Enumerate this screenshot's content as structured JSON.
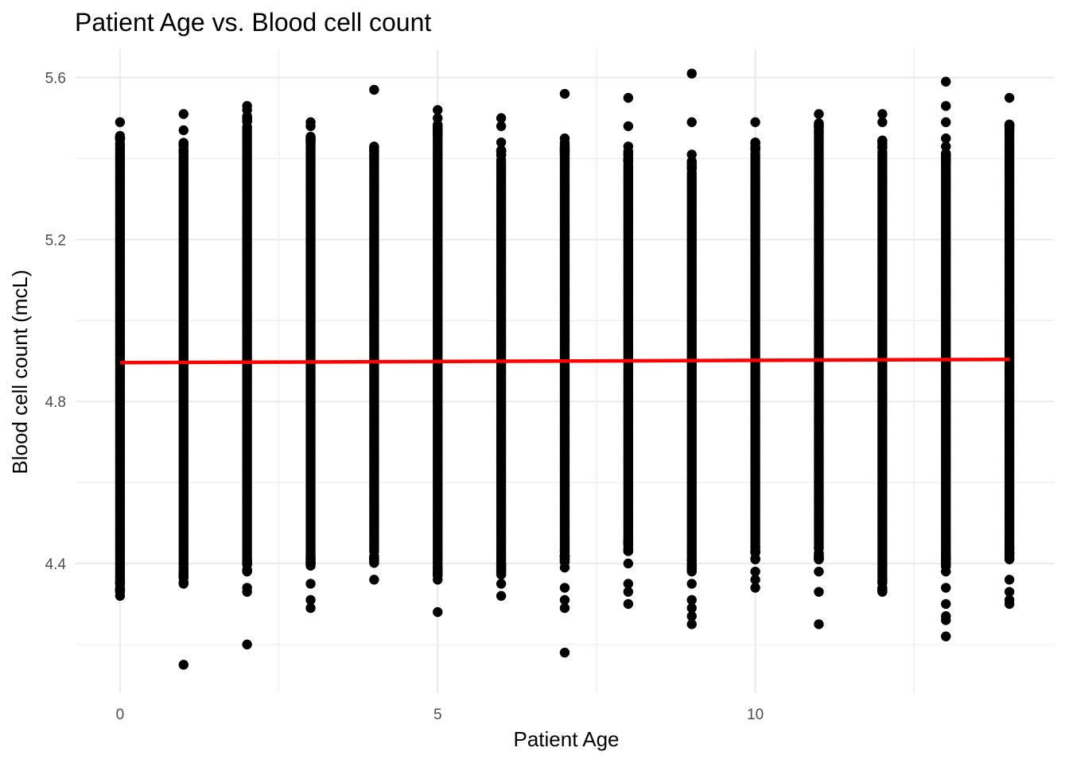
{
  "chart_data": {
    "type": "scatter",
    "title": "Patient Age vs. Blood cell count",
    "xlabel": "Patient Age",
    "ylabel": "Blood cell count (mcL)",
    "xlim": [
      -0.7,
      14.7
    ],
    "ylim": [
      4.08,
      5.67
    ],
    "x_ticks": [
      0,
      5,
      10
    ],
    "x_tick_labels": [
      "0",
      "5",
      "10"
    ],
    "x_minor_ticks": [
      2.5,
      7.5,
      12.5
    ],
    "y_ticks": [
      4.4,
      4.8,
      5.2,
      5.6
    ],
    "y_tick_labels": [
      "4.4",
      "4.8",
      "5.2",
      "5.6"
    ],
    "y_minor_ticks": [
      4.2,
      4.6,
      5.0,
      5.4
    ],
    "grid": true,
    "colors": {
      "points": "#000000",
      "fit_line": "#ff0000",
      "grid": "#ebebeb"
    },
    "columns": [
      {
        "x": 0,
        "band": [
          4.36,
          5.43
        ],
        "outliers": [
          5.49,
          4.32
        ]
      },
      {
        "x": 1,
        "band": [
          4.38,
          5.41
        ],
        "outliers": [
          5.51,
          5.47,
          4.35,
          4.15
        ]
      },
      {
        "x": 2,
        "band": [
          4.41,
          5.48
        ],
        "outliers": [
          5.53,
          5.52,
          4.38,
          4.34,
          4.33,
          4.2
        ]
      },
      {
        "x": 3,
        "band": [
          4.42,
          5.43
        ],
        "outliers": [
          5.49,
          5.48,
          4.4,
          4.35,
          4.31,
          4.29
        ]
      },
      {
        "x": 4,
        "band": [
          4.43,
          5.4
        ],
        "outliers": [
          5.57,
          4.41,
          4.36
        ]
      },
      {
        "x": 5,
        "band": [
          4.4,
          5.46
        ],
        "outliers": [
          5.52,
          5.5,
          4.38,
          4.36,
          4.28
        ]
      },
      {
        "x": 6,
        "band": [
          4.4,
          5.4
        ],
        "outliers": [
          5.5,
          5.48,
          5.44,
          4.39,
          4.35,
          4.32
        ]
      },
      {
        "x": 7,
        "band": [
          4.43,
          5.41
        ],
        "outliers": [
          5.56,
          5.45,
          4.41,
          4.39,
          4.34,
          4.31,
          4.29,
          4.18
        ]
      },
      {
        "x": 8,
        "band": [
          4.46,
          5.39
        ],
        "outliers": [
          5.55,
          5.48,
          5.43,
          4.4,
          4.35,
          4.33,
          4.3
        ]
      },
      {
        "x": 9,
        "band": [
          4.41,
          5.37
        ],
        "outliers": [
          5.61,
          5.49,
          5.41,
          4.38,
          4.35,
          4.31,
          4.29,
          4.27,
          4.25
        ]
      },
      {
        "x": 10,
        "band": [
          4.44,
          5.41
        ],
        "outliers": [
          5.49,
          5.44,
          4.41,
          4.38,
          4.36,
          4.34
        ]
      },
      {
        "x": 11,
        "band": [
          4.44,
          5.46
        ],
        "outliers": [
          5.51,
          4.41,
          4.38,
          4.33,
          4.25
        ]
      },
      {
        "x": 12,
        "band": [
          4.36,
          5.42
        ],
        "outliers": [
          5.51,
          5.49,
          5.44,
          4.34,
          4.33
        ]
      },
      {
        "x": 13,
        "band": [
          4.42,
          5.39
        ],
        "outliers": [
          5.59,
          5.53,
          5.49,
          5.45,
          5.43,
          4.38,
          4.34,
          4.3,
          4.27,
          4.26,
          4.22
        ]
      },
      {
        "x": 14,
        "band": [
          4.44,
          5.46
        ],
        "outliers": [
          5.55,
          5.48,
          4.36,
          4.33,
          4.31,
          4.3
        ]
      }
    ],
    "series": [
      {
        "type": "line",
        "x": [
          0,
          14
        ],
        "y": [
          4.896,
          4.904
        ]
      }
    ]
  }
}
